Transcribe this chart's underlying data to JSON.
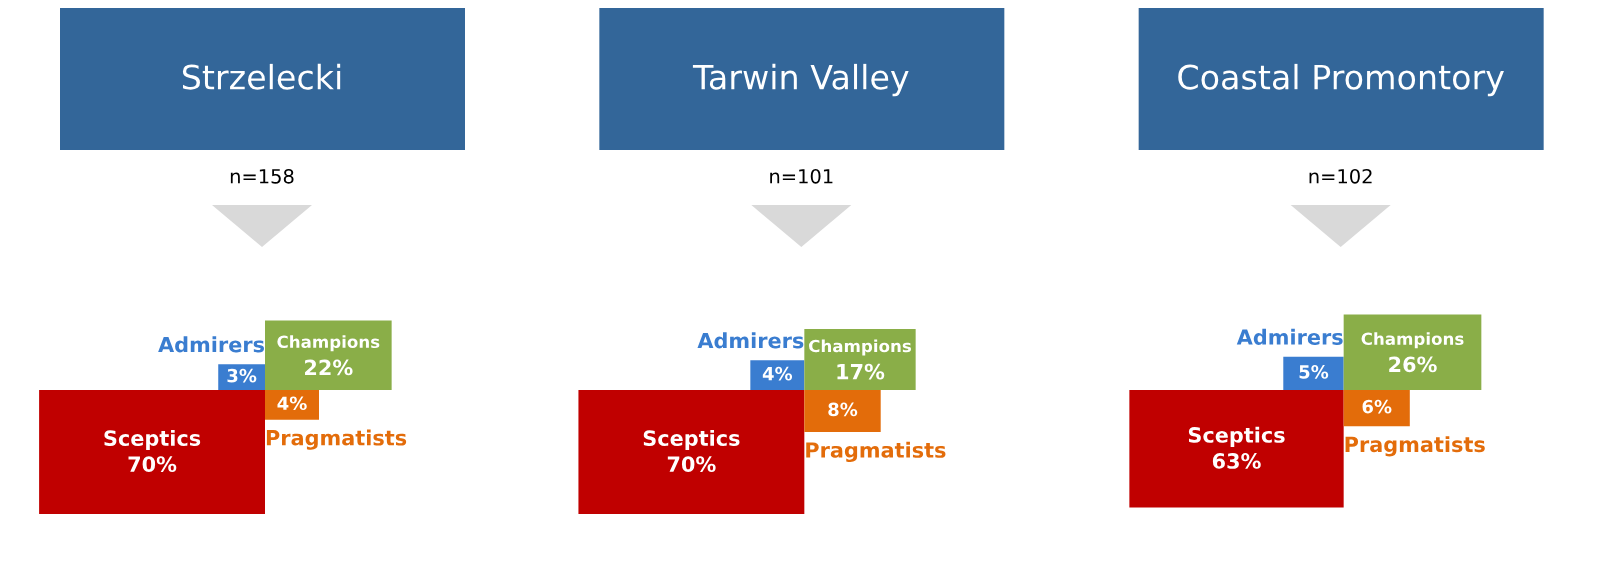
{
  "chart_data": [
    {
      "type": "other",
      "title": "Strzelecki",
      "subtitle": "n=158",
      "categories": [
        "Admirers",
        "Champions",
        "Sceptics",
        "Pragmatists"
      ],
      "values": [
        3,
        22,
        70,
        4
      ],
      "value_labels": [
        "3%",
        "22%",
        "70%",
        "4%"
      ],
      "colors": [
        "#3a7dd0",
        "#8aae48",
        "#c00000",
        "#e36c0a"
      ],
      "data_labels": true
    },
    {
      "type": "other",
      "title": "Tarwin Valley",
      "subtitle": "n=101",
      "categories": [
        "Admirers",
        "Champions",
        "Sceptics",
        "Pragmatists"
      ],
      "values": [
        4,
        17,
        70,
        8
      ],
      "value_labels": [
        "4%",
        "17%",
        "70%",
        "8%"
      ],
      "colors": [
        "#3a7dd0",
        "#8aae48",
        "#c00000",
        "#e36c0a"
      ],
      "data_labels": true
    },
    {
      "type": "other",
      "title": "Coastal Promontory",
      "subtitle": "n=102",
      "categories": [
        "Admirers",
        "Champions",
        "Sceptics",
        "Pragmatists"
      ],
      "values": [
        5,
        26,
        63,
        6
      ],
      "value_labels": [
        "5%",
        "26%",
        "63%",
        "6%"
      ],
      "colors": [
        "#3a7dd0",
        "#8aae48",
        "#c00000",
        "#e36c0a"
      ],
      "data_labels": true
    }
  ]
}
